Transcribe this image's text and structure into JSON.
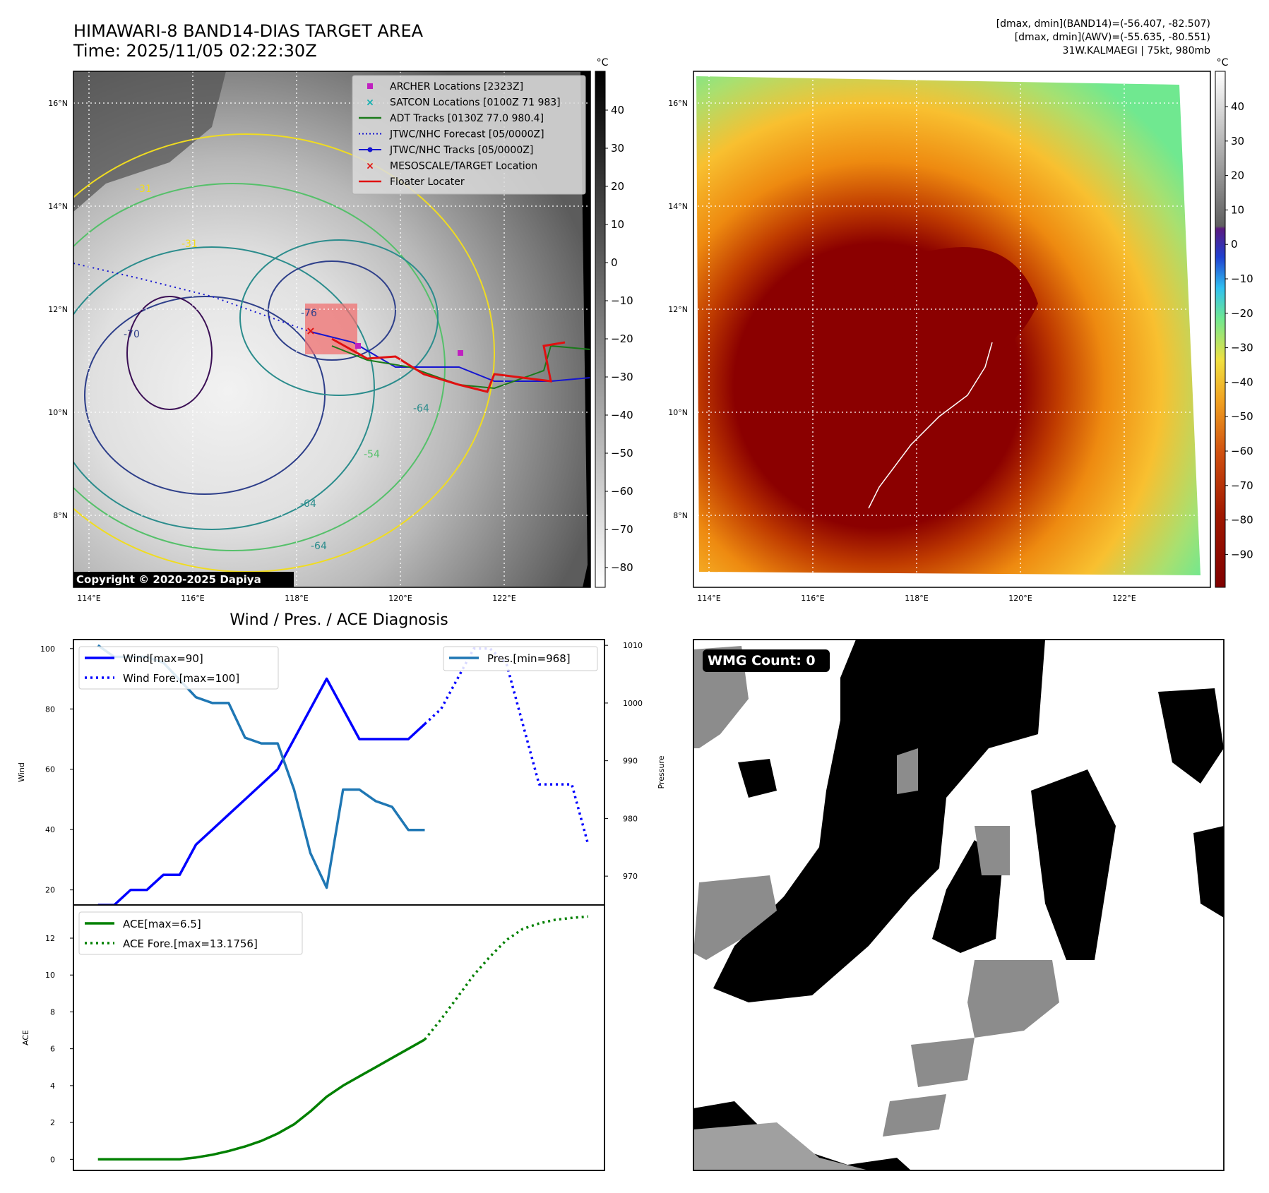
{
  "header": {
    "title_line1": "HIMAWARI-8 BAND14-DIAS TARGET AREA",
    "title_line2": "Time: 2025/11/05 02:22:30Z",
    "info_line1": "[dmax, dmin](BAND14)=(-56.407, -82.507)",
    "info_line2": "[dmax, dmin](AWV)=(-55.635, -80.551)",
    "info_line3": "31W.KALMAEGI | 75kt, 980mb"
  },
  "map": {
    "lon_labels": [
      "114°E",
      "116°E",
      "118°E",
      "120°E",
      "122°E"
    ],
    "lat_labels": [
      "16°N",
      "14°N",
      "12°N",
      "10°N",
      "8°N"
    ],
    "copyright": "Copyright © 2020-2025 Dapiya",
    "legend": [
      {
        "label": "ARCHER Locations [2323Z]",
        "color": "#c020c0",
        "marker": "square"
      },
      {
        "label": "SATCON Locations [0100Z 71 983]",
        "color": "#10b0b0",
        "marker": "x"
      },
      {
        "label": "ADT Tracks [0130Z 77.0 980.4]",
        "color": "#1a7a1a",
        "marker": "line"
      },
      {
        "label": "JTWC/NHC Forecast [05/0000Z]",
        "color": "#1515d0",
        "marker": "dotted"
      },
      {
        "label": "JTWC/NHC Tracks [05/0000Z]",
        "color": "#1515d0",
        "marker": "line-dot"
      },
      {
        "label": "MESOSCALE/TARGET Location",
        "color": "#e01010",
        "marker": "x"
      },
      {
        "label": "Floater Locater",
        "color": "#e01010",
        "marker": "line"
      }
    ],
    "contour_labels": [
      "-31",
      "-31",
      "-70",
      "-76",
      "-64",
      "-64",
      "-54",
      "-64"
    ]
  },
  "colorbar_gray": {
    "unit": "°C",
    "ticks": [
      "40",
      "30",
      "20",
      "10",
      "0",
      "−10",
      "−20",
      "−30",
      "−40",
      "−50",
      "−60",
      "−70",
      "−80"
    ]
  },
  "colorbar_color": {
    "unit": "°C",
    "ticks": [
      "40",
      "30",
      "20",
      "10",
      "0",
      "−10",
      "−20",
      "−30",
      "−40",
      "−50",
      "−60",
      "−70",
      "−80",
      "−90"
    ]
  },
  "wmg": {
    "label": "WMG Count: 0"
  },
  "chart_data": [
    {
      "type": "line",
      "title": "Wind / Pres. / ACE Diagnosis",
      "ylabel": "Wind",
      "ylabel_right": "Pressure",
      "ylim": [
        15,
        103
      ],
      "ylim_right": [
        965,
        1011
      ],
      "yticks": [
        20,
        40,
        60,
        80,
        100
      ],
      "yticks_right": [
        970,
        980,
        990,
        1000,
        1010
      ],
      "series": [
        {
          "name": "Wind[max=90]",
          "color": "#0000ff",
          "style": "solid",
          "axis": "left",
          "x": [
            0,
            1,
            2,
            3,
            4,
            5,
            6,
            7,
            8,
            9,
            10,
            11,
            12,
            13,
            14,
            15,
            16,
            17,
            18,
            19,
            20
          ],
          "values": [
            15,
            15,
            20,
            20,
            25,
            25,
            35,
            40,
            45,
            50,
            55,
            60,
            70,
            80,
            90,
            80,
            70,
            70,
            70,
            70,
            75
          ]
        },
        {
          "name": "Wind Fore.[max=100]",
          "color": "#0000ff",
          "style": "dotted",
          "axis": "left",
          "x": [
            20,
            21,
            22,
            23,
            24,
            25,
            26,
            27,
            28,
            29,
            30
          ],
          "values": [
            75,
            80,
            90,
            100,
            100,
            95,
            75,
            55,
            55,
            55,
            35
          ]
        },
        {
          "name": "Pres.[min=968]",
          "color": "#1f77b4",
          "style": "solid",
          "axis": "right",
          "x": [
            0,
            1,
            2,
            3,
            4,
            5,
            6,
            7,
            8,
            9,
            10,
            11,
            12,
            13,
            14,
            15,
            16,
            17,
            18,
            19,
            20
          ],
          "values": [
            1010,
            1008,
            1008,
            1008,
            1007,
            1004,
            1001,
            1000,
            1000,
            994,
            993,
            993,
            985,
            974,
            968,
            985,
            985,
            983,
            982,
            978,
            978
          ]
        }
      ]
    },
    {
      "type": "line",
      "ylabel": "ACE",
      "ylim": [
        -0.6,
        13.8
      ],
      "yticks": [
        0,
        2,
        4,
        6,
        8,
        10,
        12
      ],
      "series": [
        {
          "name": "ACE[max=6.5]",
          "color": "#008000",
          "style": "solid",
          "x": [
            0,
            1,
            2,
            3,
            4,
            5,
            6,
            7,
            8,
            9,
            10,
            11,
            12,
            13,
            14,
            15,
            16,
            17,
            18,
            19,
            20
          ],
          "values": [
            0,
            0,
            0,
            0,
            0,
            0,
            0.1,
            0.25,
            0.45,
            0.7,
            1.0,
            1.4,
            1.9,
            2.6,
            3.4,
            4.0,
            4.5,
            5.0,
            5.5,
            6.0,
            6.5
          ]
        },
        {
          "name": "ACE Fore.[max=13.1756]",
          "color": "#008000",
          "style": "dotted",
          "x": [
            20,
            21,
            22,
            23,
            24,
            25,
            26,
            27,
            28,
            29,
            30
          ],
          "values": [
            6.5,
            7.6,
            8.8,
            10.0,
            11.0,
            11.9,
            12.5,
            12.8,
            13.0,
            13.1,
            13.1756
          ]
        }
      ]
    }
  ]
}
